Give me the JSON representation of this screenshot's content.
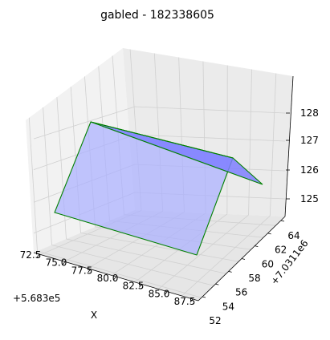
{
  "chart_data": {
    "type": "3d-surface",
    "title": "gabled - 182338605",
    "xlabel": "X",
    "ylabel": "",
    "zlabel": "",
    "x_offset_label": "+5.683e5",
    "y_offset_label": "+7.0311e6",
    "x_ticks": [
      "72.5",
      "75.0",
      "77.5",
      "80.0",
      "82.5",
      "85.0",
      "87.5"
    ],
    "y_ticks": [
      "52",
      "54",
      "56",
      "58",
      "60",
      "62",
      "64"
    ],
    "z_ticks": [
      "125",
      "126",
      "127",
      "128"
    ],
    "grid": true,
    "series": [
      {
        "roof_planes": [
          {
            "fill": "#aab0ff",
            "edge": "#008000",
            "vertices": [
              [
                73,
                51,
                125.2
              ],
              [
                85.5,
                51,
                125.2
              ],
              [
                86.5,
                62.8,
                127.3
              ],
              [
                74,
                62.8,
                127.3
              ]
            ]
          },
          {
            "fill": "#7f7fff",
            "edge": "#008000",
            "vertices": [
              [
                74,
                62.8,
                127.3
              ],
              [
                86.5,
                62.8,
                127.3
              ],
              [
                88,
                66,
                126.2
              ]
            ]
          }
        ]
      }
    ]
  }
}
